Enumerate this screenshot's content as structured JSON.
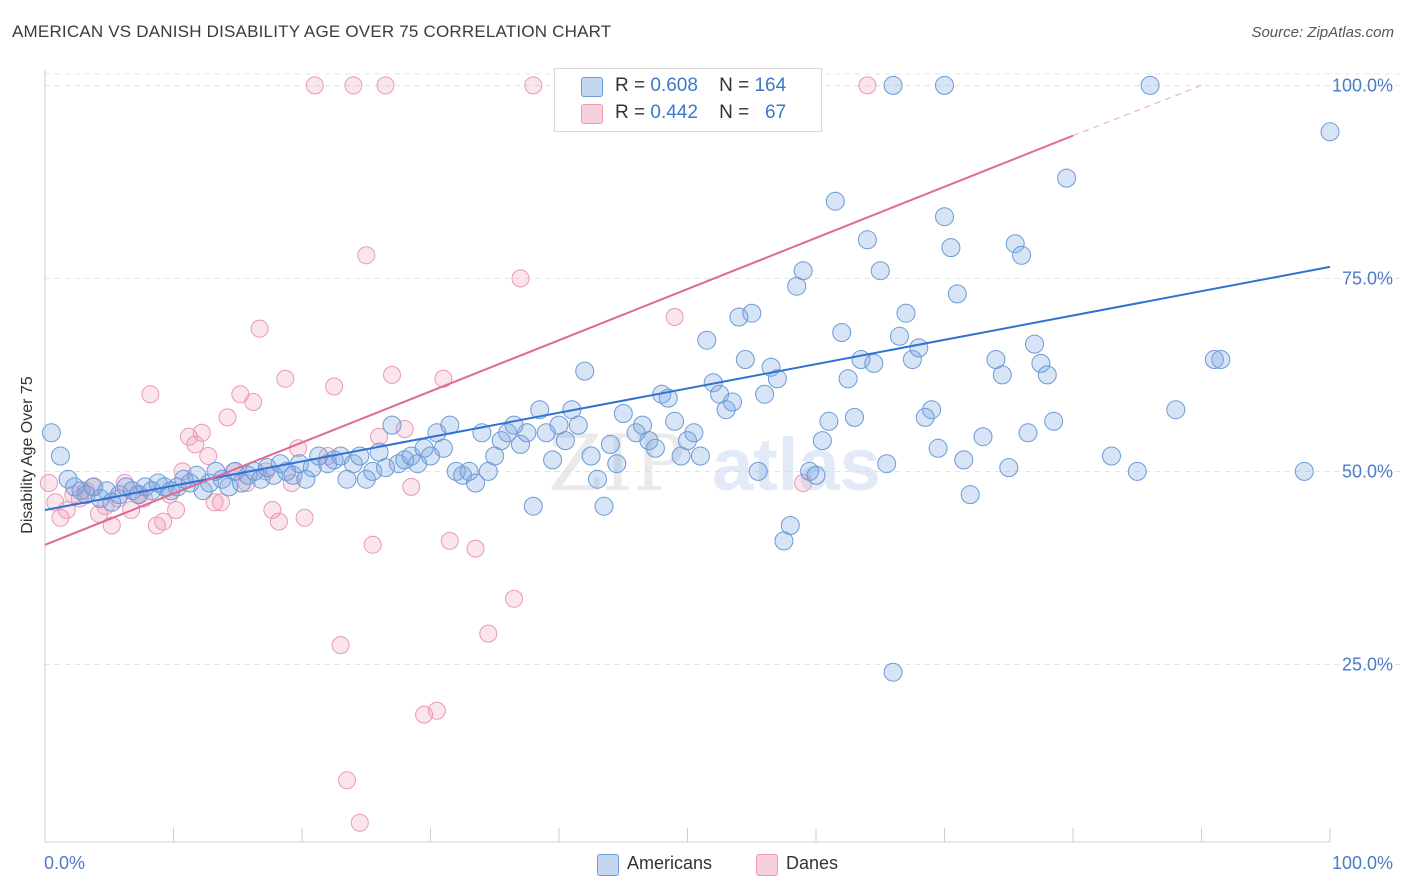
{
  "header": {
    "title": "AMERICAN VS DANISH DISABILITY AGE OVER 75 CORRELATION CHART",
    "source": "Source: ZipAtlas.com"
  },
  "watermark": "ZIPatlas",
  "colors": {
    "americans_fill": "rgba(124,166,224,0.30)",
    "americans_stroke": "#6d9ad6",
    "americans_line": "#2f72d1",
    "danes_fill": "rgba(240,150,180,0.25)",
    "danes_stroke": "#e99ab6",
    "danes_line": "#e0698f",
    "tick_label": "#4a7cc7",
    "grid": "#e3e3e3"
  },
  "stats": {
    "americans": {
      "r_label": "R =",
      "r_value": "0.608",
      "n_label": "N =",
      "n_value": "164"
    },
    "danes": {
      "r_label": "R =",
      "r_value": "0.442",
      "n_label": "N =",
      "n_value": "67"
    }
  },
  "legend": [
    {
      "label": "Americans"
    },
    {
      "label": "Danes"
    }
  ],
  "chart_data": {
    "type": "scatter",
    "title": "AMERICAN VS DANISH DISABILITY AGE OVER 75 CORRELATION CHART",
    "xlabel": "",
    "ylabel": "Disability Age Over 75",
    "xlim": [
      0,
      100
    ],
    "ylim": [
      2,
      102
    ],
    "x_tick_labels": [
      {
        "value": 0,
        "label": "0.0%"
      },
      {
        "value": 100,
        "label": "100.0%"
      }
    ],
    "y_tick_labels": [
      {
        "value": 25,
        "label": "25.0%"
      },
      {
        "value": 50,
        "label": "50.0%"
      },
      {
        "value": 75,
        "label": "75.0%"
      },
      {
        "value": 100,
        "label": "100.0%"
      }
    ],
    "grid": true,
    "legend_position": "bottom-center",
    "series": [
      {
        "name": "Americans",
        "trend": {
          "x": [
            0,
            100
          ],
          "y": [
            45.0,
            76.5
          ],
          "dashed_extension": false
        },
        "points": [
          [
            0.5,
            55.0
          ],
          [
            1.2,
            52.0
          ],
          [
            1.8,
            49.0
          ],
          [
            2.3,
            48.0
          ],
          [
            2.8,
            47.5
          ],
          [
            3.2,
            47.0
          ],
          [
            3.8,
            48.0
          ],
          [
            4.3,
            46.5
          ],
          [
            4.8,
            47.5
          ],
          [
            5.2,
            46.0
          ],
          [
            5.8,
            47.0
          ],
          [
            6.3,
            48.0
          ],
          [
            6.8,
            47.5
          ],
          [
            7.3,
            47.0
          ],
          [
            7.8,
            48.0
          ],
          [
            8.3,
            47.5
          ],
          [
            8.8,
            48.5
          ],
          [
            9.3,
            48.0
          ],
          [
            9.8,
            47.5
          ],
          [
            10.3,
            48.0
          ],
          [
            10.8,
            49.0
          ],
          [
            11.3,
            48.5
          ],
          [
            11.8,
            49.5
          ],
          [
            12.3,
            47.5
          ],
          [
            12.8,
            48.5
          ],
          [
            13.3,
            50.0
          ],
          [
            13.8,
            49.0
          ],
          [
            14.3,
            48.0
          ],
          [
            14.8,
            50.0
          ],
          [
            15.3,
            48.5
          ],
          [
            15.8,
            49.5
          ],
          [
            16.3,
            50.0
          ],
          [
            16.8,
            49.0
          ],
          [
            17.3,
            50.5
          ],
          [
            17.8,
            49.5
          ],
          [
            18.3,
            51.0
          ],
          [
            18.8,
            50.0
          ],
          [
            19.3,
            49.5
          ],
          [
            19.8,
            51.0
          ],
          [
            20.3,
            49.0
          ],
          [
            20.8,
            50.5
          ],
          [
            21.3,
            52.0
          ],
          [
            22.0,
            51.0
          ],
          [
            22.5,
            51.5
          ],
          [
            23.0,
            52.0
          ],
          [
            23.5,
            49.0
          ],
          [
            24.0,
            51.0
          ],
          [
            24.5,
            52.0
          ],
          [
            25.0,
            49.0
          ],
          [
            25.5,
            50.0
          ],
          [
            26.0,
            52.5
          ],
          [
            26.5,
            50.5
          ],
          [
            27.0,
            56.0
          ],
          [
            27.5,
            51.0
          ],
          [
            28.0,
            51.5
          ],
          [
            28.5,
            52.0
          ],
          [
            29.0,
            51.0
          ],
          [
            29.5,
            53.0
          ],
          [
            30.0,
            52.0
          ],
          [
            30.5,
            55.0
          ],
          [
            31.0,
            53.0
          ],
          [
            31.5,
            56.0
          ],
          [
            32.0,
            50.0
          ],
          [
            32.5,
            49.5
          ],
          [
            33.0,
            50.0
          ],
          [
            33.5,
            48.5
          ],
          [
            34.0,
            55.0
          ],
          [
            34.5,
            50.0
          ],
          [
            35.0,
            52.0
          ],
          [
            35.5,
            54.0
          ],
          [
            36.0,
            55.0
          ],
          [
            36.5,
            56.0
          ],
          [
            37.0,
            53.5
          ],
          [
            37.5,
            55.0
          ],
          [
            38.0,
            45.5
          ],
          [
            38.5,
            58.0
          ],
          [
            39.0,
            55.0
          ],
          [
            39.5,
            51.5
          ],
          [
            40.0,
            56.0
          ],
          [
            40.5,
            54.0
          ],
          [
            41.0,
            58.0
          ],
          [
            41.5,
            56.0
          ],
          [
            42.0,
            63.0
          ],
          [
            42.5,
            52.0
          ],
          [
            43.0,
            49.0
          ],
          [
            43.5,
            45.5
          ],
          [
            44.0,
            53.5
          ],
          [
            44.5,
            51.0
          ],
          [
            45.0,
            57.5
          ],
          [
            46.0,
            55.0
          ],
          [
            46.5,
            56.0
          ],
          [
            47.0,
            54.0
          ],
          [
            47.5,
            53.0
          ],
          [
            48.0,
            60.0
          ],
          [
            48.5,
            59.5
          ],
          [
            49.0,
            56.5
          ],
          [
            49.5,
            52.0
          ],
          [
            50.0,
            54.0
          ],
          [
            50.5,
            55.0
          ],
          [
            51.0,
            52.0
          ],
          [
            51.5,
            67.0
          ],
          [
            52.0,
            61.5
          ],
          [
            52.5,
            60.0
          ],
          [
            53.0,
            58.0
          ],
          [
            53.5,
            59.0
          ],
          [
            54.0,
            70.0
          ],
          [
            54.5,
            64.5
          ],
          [
            55.0,
            70.5
          ],
          [
            55.5,
            50.0
          ],
          [
            56.0,
            60.0
          ],
          [
            56.5,
            63.5
          ],
          [
            57.0,
            62.0
          ],
          [
            57.5,
            41.0
          ],
          [
            58.0,
            43.0
          ],
          [
            58.5,
            74.0
          ],
          [
            59.0,
            76.0
          ],
          [
            59.5,
            50.0
          ],
          [
            60.0,
            49.5
          ],
          [
            60.5,
            54.0
          ],
          [
            61.0,
            56.5
          ],
          [
            61.5,
            85.0
          ],
          [
            62.0,
            68.0
          ],
          [
            62.5,
            62.0
          ],
          [
            63.0,
            57.0
          ],
          [
            63.5,
            64.5
          ],
          [
            64.0,
            80.0
          ],
          [
            64.5,
            64.0
          ],
          [
            65.0,
            76.0
          ],
          [
            65.5,
            51.0
          ],
          [
            66.0,
            24.0
          ],
          [
            66.5,
            67.5
          ],
          [
            67.0,
            70.5
          ],
          [
            67.5,
            64.5
          ],
          [
            68.0,
            66.0
          ],
          [
            68.5,
            57.0
          ],
          [
            69.0,
            58.0
          ],
          [
            69.5,
            53.0
          ],
          [
            70.0,
            83.0
          ],
          [
            70.5,
            79.0
          ],
          [
            71.0,
            73.0
          ],
          [
            71.5,
            51.5
          ],
          [
            72.0,
            47.0
          ],
          [
            73.0,
            54.5
          ],
          [
            74.0,
            64.5
          ],
          [
            74.5,
            62.5
          ],
          [
            75.0,
            50.5
          ],
          [
            75.5,
            79.5
          ],
          [
            76.0,
            78.0
          ],
          [
            76.5,
            55.0
          ],
          [
            77.0,
            66.5
          ],
          [
            77.5,
            64.0
          ],
          [
            78.0,
            62.5
          ],
          [
            78.5,
            56.5
          ],
          [
            79.5,
            88.0
          ],
          [
            83.0,
            52.0
          ],
          [
            85.0,
            50.0
          ],
          [
            88.0,
            58.0
          ],
          [
            91.0,
            64.5
          ],
          [
            91.5,
            64.5
          ],
          [
            98.0,
            50.0
          ],
          [
            100.0,
            94.0
          ],
          [
            66.0,
            100.0
          ],
          [
            70.0,
            100.0
          ],
          [
            86.0,
            100.0
          ]
        ]
      },
      {
        "name": "Danes",
        "trend": {
          "x": [
            0,
            80
          ],
          "y": [
            40.5,
            93.5
          ],
          "dashed_extension": true,
          "dashed_to": [
            90,
            100
          ]
        },
        "points": [
          [
            0.3,
            48.5
          ],
          [
            0.8,
            46.0
          ],
          [
            1.2,
            44.0
          ],
          [
            1.7,
            45.0
          ],
          [
            2.2,
            47.0
          ],
          [
            2.7,
            46.5
          ],
          [
            3.2,
            47.5
          ],
          [
            3.7,
            48.0
          ],
          [
            4.2,
            44.5
          ],
          [
            4.7,
            45.5
          ],
          [
            5.2,
            43.0
          ],
          [
            5.7,
            46.5
          ],
          [
            6.2,
            48.5
          ],
          [
            6.7,
            45.0
          ],
          [
            7.2,
            47.0
          ],
          [
            7.7,
            46.5
          ],
          [
            8.2,
            60.0
          ],
          [
            8.7,
            43.0
          ],
          [
            9.2,
            43.5
          ],
          [
            9.7,
            47.0
          ],
          [
            10.2,
            45.0
          ],
          [
            10.7,
            50.0
          ],
          [
            11.2,
            54.5
          ],
          [
            11.7,
            53.5
          ],
          [
            12.2,
            55.0
          ],
          [
            12.7,
            52.0
          ],
          [
            13.2,
            46.0
          ],
          [
            13.7,
            46.0
          ],
          [
            14.2,
            57.0
          ],
          [
            14.7,
            50.0
          ],
          [
            15.2,
            60.0
          ],
          [
            15.7,
            48.5
          ],
          [
            16.2,
            59.0
          ],
          [
            16.7,
            68.5
          ],
          [
            17.2,
            50.0
          ],
          [
            17.7,
            45.0
          ],
          [
            18.2,
            43.5
          ],
          [
            18.7,
            62.0
          ],
          [
            19.2,
            48.5
          ],
          [
            19.7,
            53.0
          ],
          [
            20.2,
            44.0
          ],
          [
            21.0,
            100.0
          ],
          [
            22.0,
            52.0
          ],
          [
            22.5,
            61.0
          ],
          [
            23.0,
            27.5
          ],
          [
            23.5,
            10.0
          ],
          [
            24.0,
            100.0
          ],
          [
            24.5,
            4.5
          ],
          [
            25.0,
            78.0
          ],
          [
            25.5,
            40.5
          ],
          [
            26.0,
            54.5
          ],
          [
            26.5,
            100.0
          ],
          [
            27.0,
            62.5
          ],
          [
            28.0,
            55.5
          ],
          [
            28.5,
            48.0
          ],
          [
            29.5,
            18.5
          ],
          [
            30.5,
            19.0
          ],
          [
            31.0,
            62.0
          ],
          [
            31.5,
            41.0
          ],
          [
            33.5,
            40.0
          ],
          [
            34.5,
            29.0
          ],
          [
            36.5,
            33.5
          ],
          [
            37.0,
            75.0
          ],
          [
            38.0,
            100.0
          ],
          [
            49.0,
            70.0
          ],
          [
            59.0,
            48.5
          ],
          [
            64.0,
            100.0
          ]
        ]
      }
    ]
  }
}
